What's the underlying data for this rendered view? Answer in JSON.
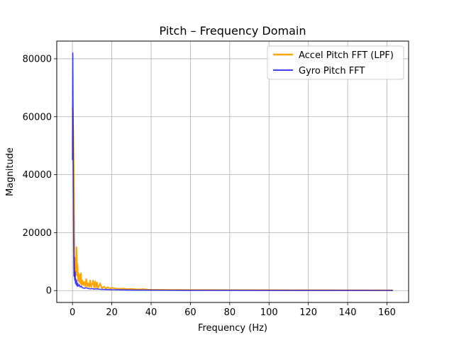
{
  "chart_data": {
    "type": "line",
    "title": "Pitch – Frequency Domain",
    "xlabel": "Frequency (Hz)",
    "ylabel": "Magnitude",
    "xlim": [
      -8,
      171
    ],
    "ylim": [
      -4100,
      86100
    ],
    "xticks": [
      0,
      20,
      40,
      60,
      80,
      100,
      120,
      140,
      160
    ],
    "yticks": [
      0,
      20000,
      40000,
      60000,
      80000
    ],
    "xtick_labels": [
      "0",
      "20",
      "40",
      "60",
      "80",
      "100",
      "120",
      "140",
      "160"
    ],
    "ytick_labels": [
      "0",
      "20000",
      "40000",
      "60000",
      "80000"
    ],
    "grid": true,
    "legend_position": "top-right",
    "series": [
      {
        "name": "Accel Pitch FFT (LPF)",
        "color": "#ffa500",
        "x": [
          0,
          0.2,
          0.4,
          0.6,
          0.8,
          1.0,
          1.2,
          1.4,
          1.6,
          1.8,
          2.0,
          2.2,
          2.4,
          2.6,
          2.8,
          3.0,
          3.3,
          3.6,
          4.0,
          4.3,
          4.6,
          5.0,
          5.5,
          6.0,
          6.5,
          7.0,
          7.5,
          8.0,
          8.5,
          9.0,
          9.5,
          10.0,
          10.5,
          11.0,
          11.5,
          12.0,
          12.5,
          13.0,
          13.5,
          14.0,
          15.0,
          16.0,
          17.0,
          18.0,
          19.0,
          20.0,
          22.0,
          24.0,
          26.0,
          28.0,
          30.0,
          32.0,
          34.0,
          36.0,
          38.0,
          40.0,
          45.0,
          50.0,
          55.0,
          60.0,
          70.0,
          80.0,
          90.0,
          100.0,
          110.0,
          120.0,
          130.0,
          140.0,
          150.0,
          160.0,
          163.0
        ],
        "y": [
          63000,
          61000,
          55000,
          43000,
          30000,
          16000,
          4000,
          11000,
          8000,
          5500,
          15000,
          12000,
          5000,
          9000,
          3500,
          6000,
          3000,
          5500,
          2500,
          6000,
          2000,
          3500,
          1800,
          3000,
          1500,
          4000,
          1500,
          2500,
          1200,
          3500,
          1200,
          2200,
          3500,
          1000,
          3200,
          1000,
          2800,
          900,
          1500,
          2500,
          800,
          1400,
          700,
          1200,
          600,
          1000,
          700,
          600,
          700,
          500,
          600,
          450,
          400,
          500,
          350,
          300,
          280,
          250,
          230,
          220,
          200,
          190,
          180,
          170,
          160,
          150,
          140,
          130,
          120,
          110,
          100
        ]
      },
      {
        "name": "Gyro Pitch FFT",
        "color": "#0000ff",
        "x": [
          0,
          0.15,
          0.3,
          0.45,
          0.6,
          0.75,
          0.9,
          1.05,
          1.2,
          1.35,
          1.5,
          1.7,
          1.9,
          2.1,
          2.4,
          2.7,
          3.0,
          3.5,
          4.0,
          4.5,
          5.0,
          6.0,
          7.0,
          8.0,
          9.0,
          10.0,
          11.0,
          12.0,
          14.0,
          16.0,
          18.0,
          20.0,
          25.0,
          30.0,
          40.0,
          50.0,
          60.0,
          80.0,
          100.0,
          120.0,
          140.0,
          160.0,
          163.0
        ],
        "y": [
          45000,
          82000,
          64000,
          38000,
          15000,
          5000,
          11500,
          5000,
          3500,
          6500,
          2500,
          4000,
          2000,
          3500,
          1500,
          2500,
          1500,
          2000,
          1200,
          1500,
          1000,
          800,
          1000,
          700,
          600,
          700,
          500,
          600,
          450,
          400,
          350,
          300,
          250,
          200,
          150,
          120,
          100,
          90,
          80,
          70,
          60,
          55,
          50
        ]
      }
    ]
  }
}
